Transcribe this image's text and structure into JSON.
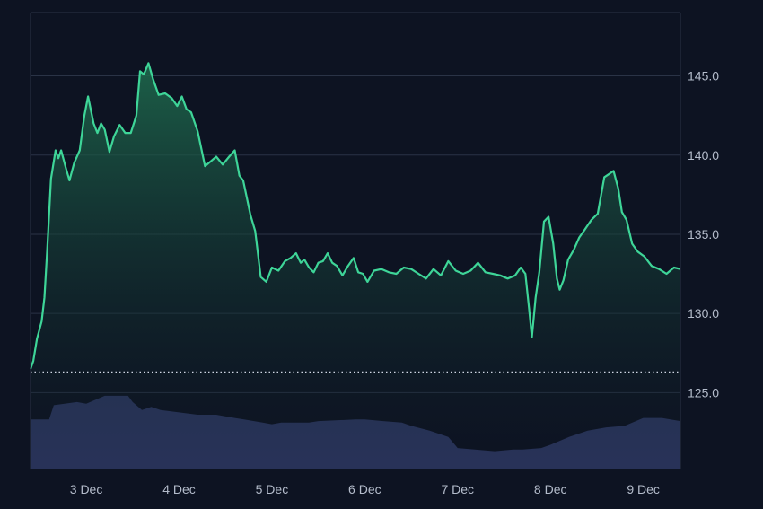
{
  "colors": {
    "background": "#0d1322",
    "price_line": "#3ed598",
    "area_top": "#1f6e4f",
    "volume": "#2f3a66",
    "grid": "#2a3346",
    "baseline": "#cfd6e4"
  },
  "chart_data": {
    "type": "line",
    "ylim": [
      120.2,
      149
    ],
    "y_ticks": [
      "125.0",
      "130.0",
      "135.0",
      "140.0",
      "145.0"
    ],
    "x_ticks": [
      "3 Dec",
      "4 Dec",
      "5 Dec",
      "6 Dec",
      "7 Dec",
      "8 Dec",
      "9 Dec"
    ],
    "x_tick_positions": [
      2.6,
      3.6,
      4.6,
      5.6,
      6.6,
      7.6,
      8.6
    ],
    "xlim": [
      2.0,
      9.0
    ],
    "grid": "horizontal",
    "baseline_value": 126.3,
    "series": [
      {
        "x": [
          2.0,
          2.03,
          2.07,
          2.12,
          2.15,
          2.18,
          2.22,
          2.27,
          2.3,
          2.33,
          2.38,
          2.42,
          2.47,
          2.53,
          2.58,
          2.62,
          2.68,
          2.72,
          2.76,
          2.8,
          2.85,
          2.9,
          2.96,
          3.02,
          3.08,
          3.14,
          3.18,
          3.22,
          3.27,
          3.32,
          3.38,
          3.45,
          3.52,
          3.58,
          3.63,
          3.68,
          3.73,
          3.8,
          3.88,
          3.94,
          4.0,
          4.07,
          4.14,
          4.2,
          4.25,
          4.29,
          4.33,
          4.37,
          4.42,
          4.48,
          4.54,
          4.6,
          4.67,
          4.74,
          4.8,
          4.86,
          4.91,
          4.95,
          5.0,
          5.05,
          5.1,
          5.15,
          5.2,
          5.25,
          5.3,
          5.36,
          5.42,
          5.48,
          5.53,
          5.58,
          5.63,
          5.7,
          5.78,
          5.86,
          5.94,
          6.02,
          6.1,
          6.18,
          6.26,
          6.34,
          6.42,
          6.5,
          6.58,
          6.66,
          6.74,
          6.82,
          6.9,
          6.98,
          7.06,
          7.14,
          7.22,
          7.28,
          7.33,
          7.37,
          7.4,
          7.44,
          7.48,
          7.53,
          7.58,
          7.63,
          7.67,
          7.7,
          7.74,
          7.79,
          7.85,
          7.91,
          7.97,
          8.04,
          8.11,
          8.18,
          8.23,
          8.28,
          8.33,
          8.37,
          8.42,
          8.48,
          8.54,
          8.61,
          8.69,
          8.77,
          8.85,
          8.93,
          9.0
        ],
        "y": [
          126.5,
          127.0,
          128.4,
          129.5,
          131.0,
          134.0,
          138.5,
          140.3,
          139.8,
          140.3,
          139.2,
          138.4,
          139.5,
          140.3,
          142.5,
          143.7,
          142.0,
          141.4,
          142.0,
          141.6,
          140.2,
          141.2,
          141.9,
          141.4,
          141.4,
          142.5,
          145.3,
          145.1,
          145.8,
          144.8,
          143.8,
          143.9,
          143.6,
          143.1,
          143.7,
          142.9,
          142.7,
          141.5,
          139.3,
          139.6,
          139.9,
          139.4,
          139.9,
          140.3,
          138.7,
          138.4,
          137.3,
          136.2,
          135.2,
          132.3,
          132.0,
          132.9,
          132.7,
          133.3,
          133.5,
          133.8,
          133.2,
          133.4,
          132.9,
          132.6,
          133.2,
          133.3,
          133.8,
          133.2,
          133.0,
          132.4,
          133.0,
          133.5,
          132.6,
          132.5,
          132.0,
          132.7,
          132.8,
          132.6,
          132.5,
          132.9,
          132.8,
          132.5,
          132.2,
          132.8,
          132.4,
          133.3,
          132.7,
          132.5,
          132.7,
          133.2,
          132.6,
          132.5,
          132.4,
          132.2,
          132.4,
          132.9,
          132.5,
          130.3,
          128.5,
          131.0,
          132.6,
          135.8,
          136.1,
          134.4,
          132.2,
          131.5,
          132.1,
          133.4,
          134.0,
          134.8,
          135.3,
          135.9,
          136.3,
          138.6,
          138.8,
          139.0,
          137.9,
          136.4,
          135.9,
          134.4,
          133.9,
          133.6,
          133.0,
          132.8,
          132.5,
          132.9,
          132.8
        ]
      }
    ],
    "volume": {
      "x": [
        2.0,
        2.2,
        2.25,
        2.5,
        2.6,
        2.8,
        3.05,
        3.1,
        3.2,
        3.3,
        3.4,
        3.8,
        4.0,
        4.2,
        4.3,
        4.5,
        4.6,
        4.7,
        5.0,
        5.1,
        5.5,
        5.6,
        5.8,
        6.0,
        6.1,
        6.3,
        6.5,
        6.6,
        7.0,
        7.2,
        7.3,
        7.5,
        7.6,
        7.8,
        8.0,
        8.2,
        8.4,
        8.6,
        8.8,
        9.0
      ],
      "y": [
        123.3,
        123.3,
        124.2,
        124.4,
        124.3,
        124.8,
        124.8,
        124.4,
        123.9,
        124.1,
        123.9,
        123.6,
        123.6,
        123.4,
        123.3,
        123.1,
        123.0,
        123.1,
        123.1,
        123.2,
        123.3,
        123.3,
        123.2,
        123.1,
        122.9,
        122.6,
        122.2,
        121.5,
        121.3,
        121.4,
        121.4,
        121.5,
        121.7,
        122.2,
        122.6,
        122.8,
        122.9,
        123.4,
        123.4,
        123.2
      ]
    }
  }
}
